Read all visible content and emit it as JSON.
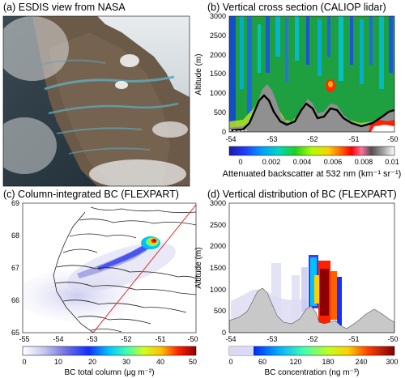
{
  "panels": {
    "a": {
      "title": "(a) ESDIS view from NASA"
    },
    "b": {
      "title": "(b) Vertical cross section (CALIOP lidar)",
      "ylabel": "Altitude (m)",
      "yticks": [
        "3000",
        "2500",
        "2000",
        "1500",
        "1000",
        "500",
        "0"
      ],
      "xticks": [
        "-54",
        "-53",
        "-52",
        "-51",
        "-50"
      ],
      "colorbar_ticks": [
        "0",
        "0.002",
        "0.004",
        "0.006",
        "0.008",
        "0.01"
      ],
      "colorbar_label": "Attenuated backscatter at 532 nm (km⁻¹ sr⁻¹)"
    },
    "c": {
      "title": "(c) Column-integrated BC (FLEXPART)",
      "yticks": [
        "69",
        "68",
        "67",
        "66",
        "65"
      ],
      "xticks": [
        "-55",
        "-54",
        "-53",
        "-52",
        "-51",
        "-50"
      ],
      "colorbar_ticks": [
        "0",
        "10",
        "20",
        "30",
        "40",
        "50"
      ],
      "colorbar_label": "BC total column (μg m⁻²)"
    },
    "d": {
      "title": "(d) Vertical distribution of BC (FLEXPART)",
      "ylabel": "Altitude (m)",
      "yticks": [
        "3000",
        "2500",
        "2000",
        "1500",
        "1000",
        "500",
        "0"
      ],
      "xticks": [
        "-54",
        "-53",
        "-52",
        "-51",
        "-50"
      ],
      "colorbar_ticks": [
        "0",
        "60",
        "120",
        "180",
        "240",
        "300"
      ],
      "colorbar_label": "BC concentration (ng m⁻³)"
    }
  },
  "colors": {
    "ground": "#c8c8c8",
    "cross_section_line": "#e0302a",
    "terrain_line": "#000000"
  }
}
